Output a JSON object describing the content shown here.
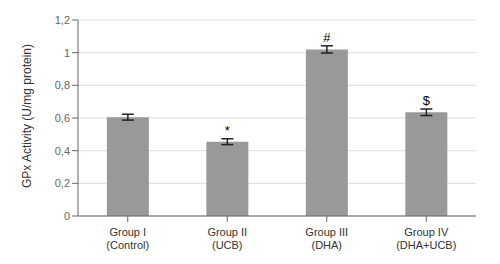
{
  "chart_data": {
    "type": "bar",
    "categories": [
      "Group I\n(Control)",
      "Group II\n(UCB)",
      "Group III\n(DHA)",
      "Group IV\n(DHA+UCB)"
    ],
    "values": [
      0.605,
      0.455,
      1.02,
      0.635
    ],
    "errors": [
      0.018,
      0.018,
      0.022,
      0.02
    ],
    "color": "#999999",
    "ylabel": "GPx Activity (U/mg protein)",
    "ylim": [
      0,
      1.2
    ],
    "yticks": [
      0,
      {
        "value": 0.2,
        "label": "0,2"
      },
      {
        "value": 0.4,
        "label": "0,4"
      },
      {
        "value": 0.6,
        "label": "0,6"
      },
      {
        "value": 0.8,
        "label": "0,8"
      },
      1.0,
      {
        "value": 1.2,
        "label": "1,2"
      }
    ],
    "grid": true,
    "annotations": [
      {
        "text": "*",
        "category": "Group II\n(UCB)"
      },
      {
        "text": "#",
        "category": "Group III\n(DHA)"
      },
      {
        "text": "$",
        "category": "Group IV\n(DHA+UCB)"
      }
    ]
  }
}
